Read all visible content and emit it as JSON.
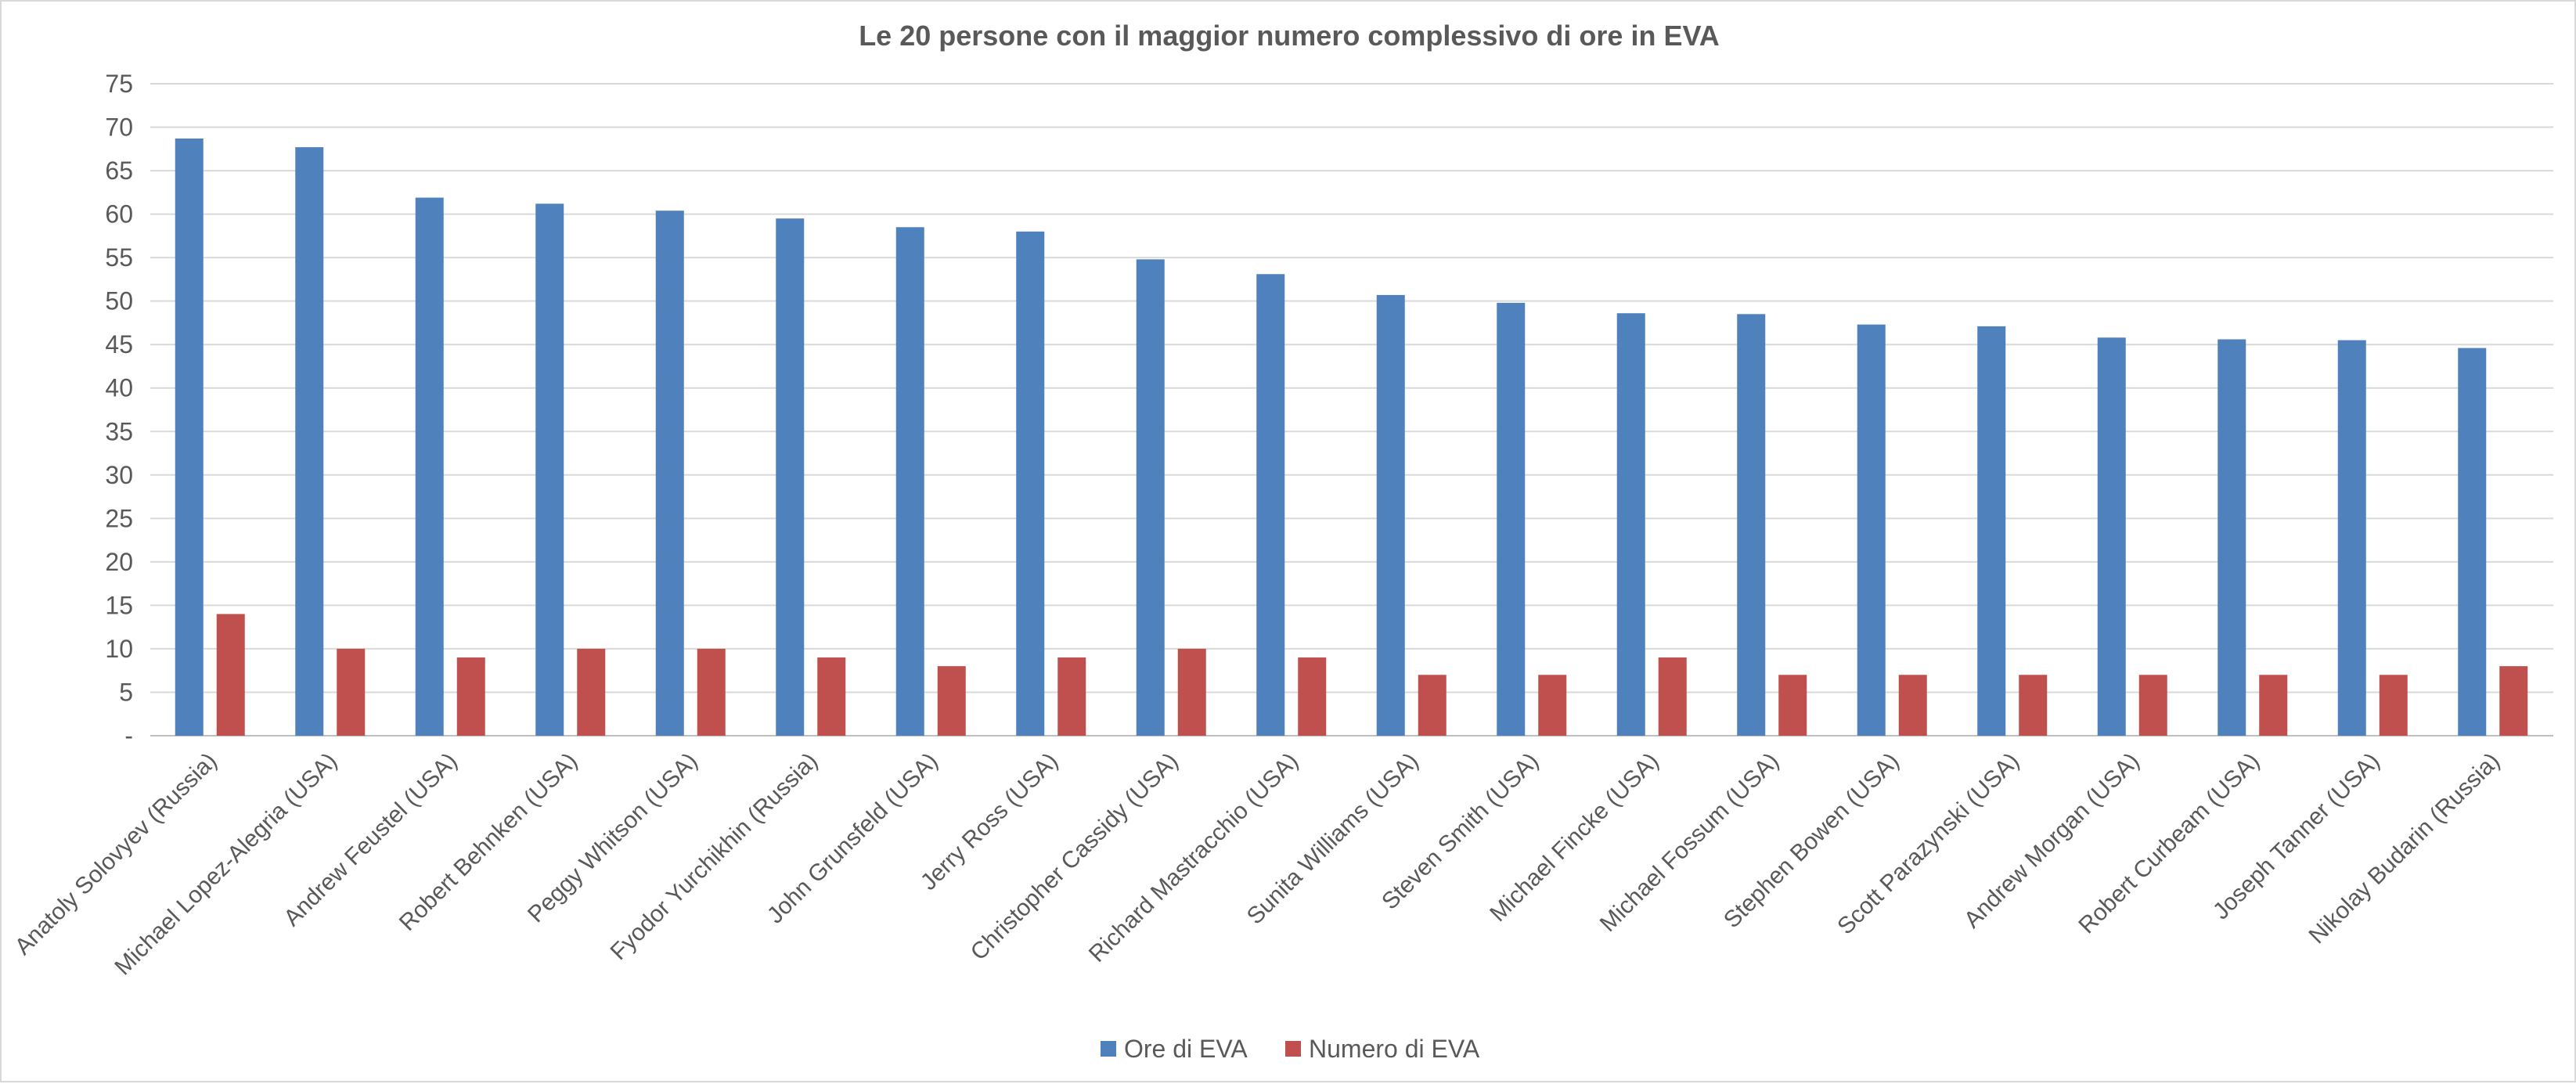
{
  "chart_data": {
    "type": "bar",
    "title": "Le 20 persone con il maggior numero complessivo di ore in EVA",
    "xlabel": "",
    "ylabel": "",
    "ylim": [
      0,
      75
    ],
    "yticks": [
      0,
      5,
      10,
      15,
      20,
      25,
      30,
      35,
      40,
      45,
      50,
      55,
      60,
      65,
      70,
      75
    ],
    "ytick_labels": [
      "-",
      "5",
      "10",
      "15",
      "20",
      "25",
      "30",
      "35",
      "40",
      "45",
      "50",
      "55",
      "60",
      "65",
      "70",
      "75"
    ],
    "grid": true,
    "legend_position": "bottom",
    "categories": [
      "Anatoly Solovyev (Russia)",
      "Michael Lopez-Alegria (USA)",
      "Andrew Feustel (USA)",
      "Robert Behnken (USA)",
      "Peggy Whitson (USA)",
      "Fyodor Yurchikhin (Russia)",
      "John Grunsfeld (USA)",
      "Jerry Ross (USA)",
      "Christopher Cassidy (USA)",
      "Richard Mastracchio (USA)",
      "Sunita Williams (USA)",
      "Steven Smith (USA)",
      "Michael Fincke (USA)",
      "Michael Fossum (USA)",
      "Stephen Bowen (USA)",
      "Scott Parazynski (USA)",
      "Andrew Morgan (USA)",
      "Robert Curbeam (USA)",
      "Joseph Tanner (USA)",
      "Nikolay Budarin (Russia)"
    ],
    "series": [
      {
        "name": "Ore di EVA",
        "color": "#4f81bd",
        "values": [
          68.7,
          67.7,
          61.9,
          61.2,
          60.4,
          59.5,
          58.5,
          58.0,
          54.8,
          53.1,
          50.7,
          49.8,
          48.6,
          48.5,
          47.3,
          47.1,
          45.8,
          45.6,
          45.5,
          44.6
        ]
      },
      {
        "name": "Numero di EVA",
        "color": "#c0504d",
        "values": [
          14,
          10,
          9,
          10,
          10,
          9,
          8,
          9,
          10,
          9,
          7,
          7,
          9,
          7,
          7,
          7,
          7,
          7,
          7,
          8
        ]
      }
    ]
  }
}
